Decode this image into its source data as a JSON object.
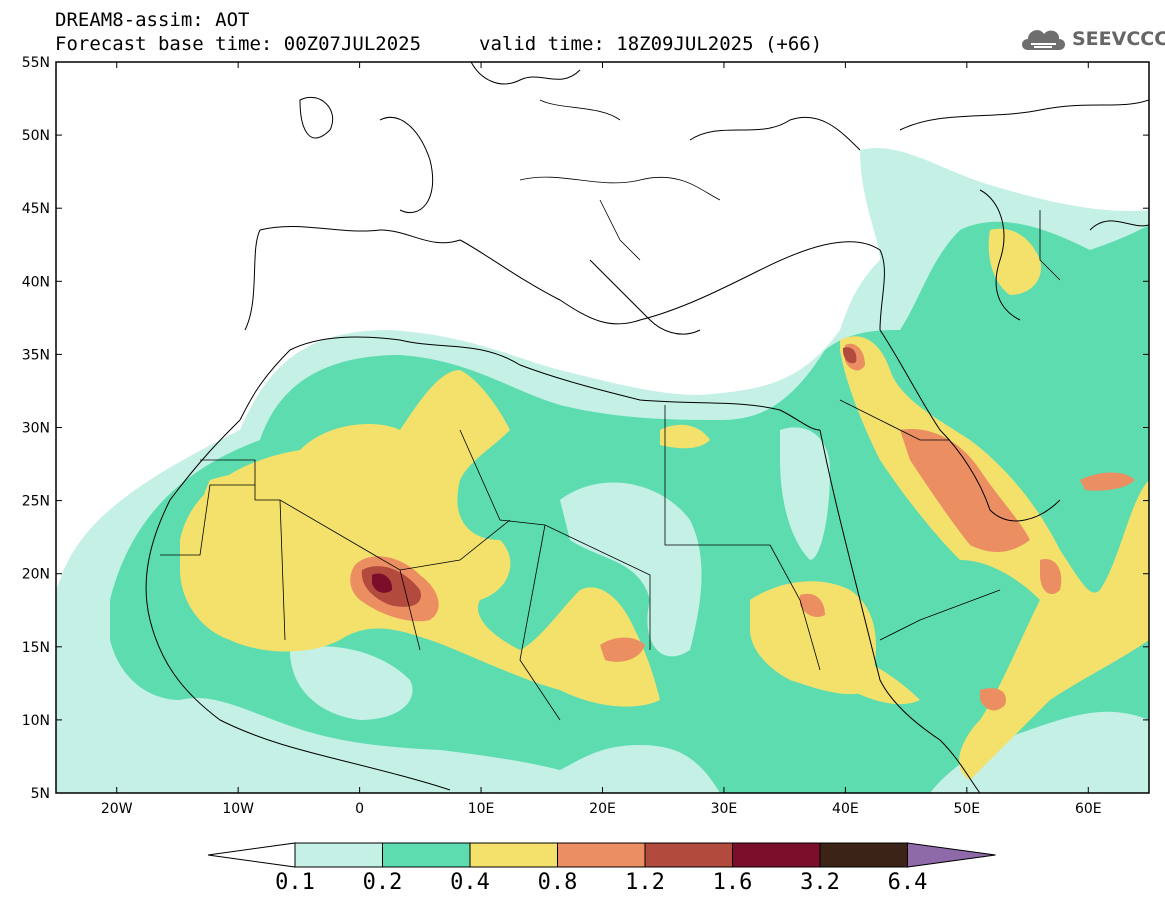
{
  "header": {
    "title": "DREAM8-assim: AOT",
    "forecast_base": "Forecast base time: 00Z07JUL2025",
    "valid_time": "valid time: 18Z09JUL2025 (+66)"
  },
  "logo": {
    "text": "SEEVCCC",
    "icon": "cloud-icon"
  },
  "map": {
    "lat_labels": [
      "55N",
      "50N",
      "45N",
      "40N",
      "35N",
      "30N",
      "25N",
      "20N",
      "15N",
      "10N",
      "5N"
    ],
    "lon_labels": [
      "20W",
      "10W",
      "0",
      "10E",
      "20E",
      "30E",
      "40E",
      "50E",
      "60E"
    ],
    "extent": {
      "lon": [
        -25,
        65
      ],
      "lat": [
        5,
        55
      ]
    }
  },
  "colorbar": {
    "labels": [
      "0.1",
      "0.2",
      "0.4",
      "0.8",
      "1.2",
      "1.6",
      "3.2",
      "6.4"
    ],
    "colors": [
      "#ffffff",
      "#c4f0e6",
      "#5ddcb0",
      "#f3e16c",
      "#eb8f63",
      "#b24a3d",
      "#7b0f2b",
      "#3b2417",
      "#8e6aa8"
    ]
  }
}
